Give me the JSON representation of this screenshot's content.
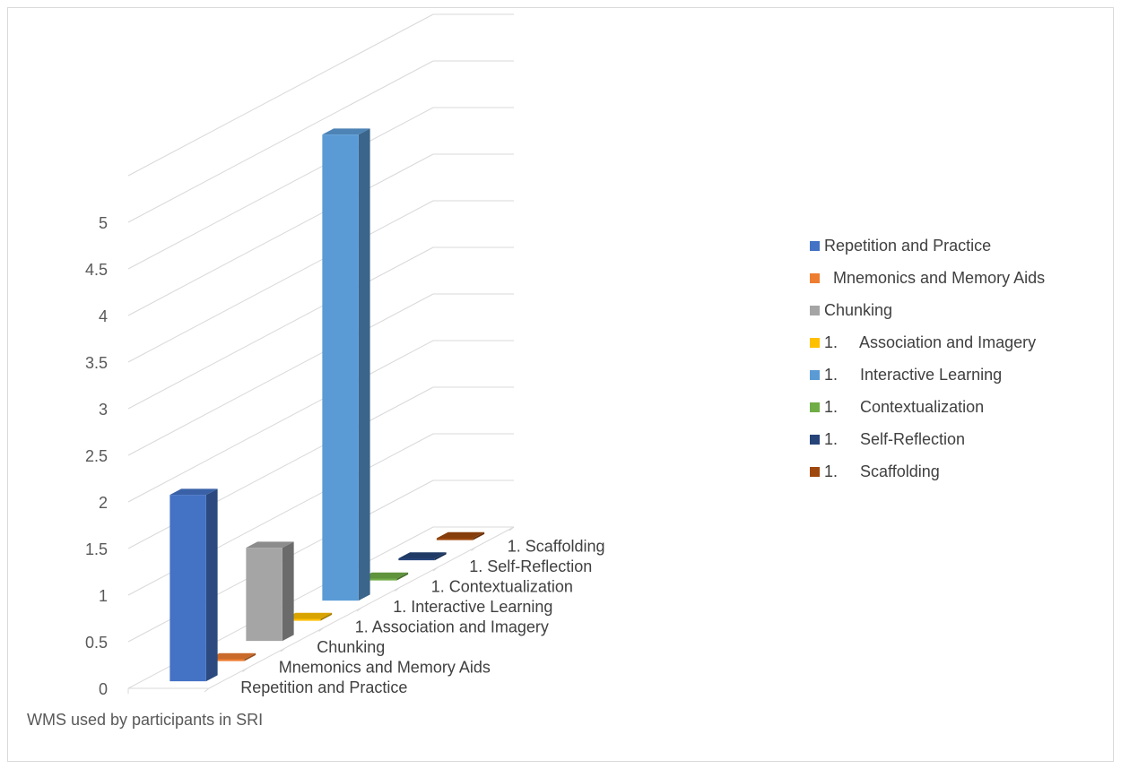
{
  "chart_data": {
    "type": "bar",
    "title": "",
    "subtitle": "",
    "xlabel": "WMS used by participants in SRI",
    "ylabel": "",
    "ylim": [
      0,
      6
    ],
    "y_tick_labels": [
      "0",
      "0.5",
      "1",
      "1.5",
      "2",
      "2.5",
      "3",
      "3.5",
      "4",
      "4.5",
      "5"
    ],
    "grid": true,
    "legend_position": "right",
    "three_d": true,
    "categories": [
      "Repetition and Practice",
      " Mnemonics and Memory Aids",
      "Chunking",
      "1.\tAssociation and Imagery",
      "1.\tInteractive Learning",
      "1.\tContextualization",
      "1.\tSelf-Reflection",
      "1.\tScaffolding"
    ],
    "series": [
      {
        "name": "Repetition and Practice",
        "value": 2,
        "color": "#4472c4"
      },
      {
        "name": "  Mnemonics and Memory Aids",
        "value": 0,
        "color": "#ed7d31"
      },
      {
        "name": "Chunking",
        "value": 1,
        "color": "#a5a5a5"
      },
      {
        "name": "1.     Association and Imagery",
        "value": 0,
        "color": "#ffc000"
      },
      {
        "name": "1.     Interactive Learning",
        "value": 5,
        "color": "#5b9bd5"
      },
      {
        "name": "1.     Contextualization",
        "value": 0,
        "color": "#70ad47"
      },
      {
        "name": "1.     Self-Reflection",
        "value": 0,
        "color": "#264478"
      },
      {
        "name": "1.     Scaffolding",
        "value": 0,
        "color": "#9e480e"
      }
    ],
    "depth_axis_labels": [
      "Repetition and Practice",
      "Mnemonics and Memory Aids",
      "Chunking",
      "1.     Association and Imagery",
      "1.     Interactive Learning",
      "1.     Contextualization",
      "1.     Self-Reflection",
      "1.     Scaffolding"
    ]
  }
}
